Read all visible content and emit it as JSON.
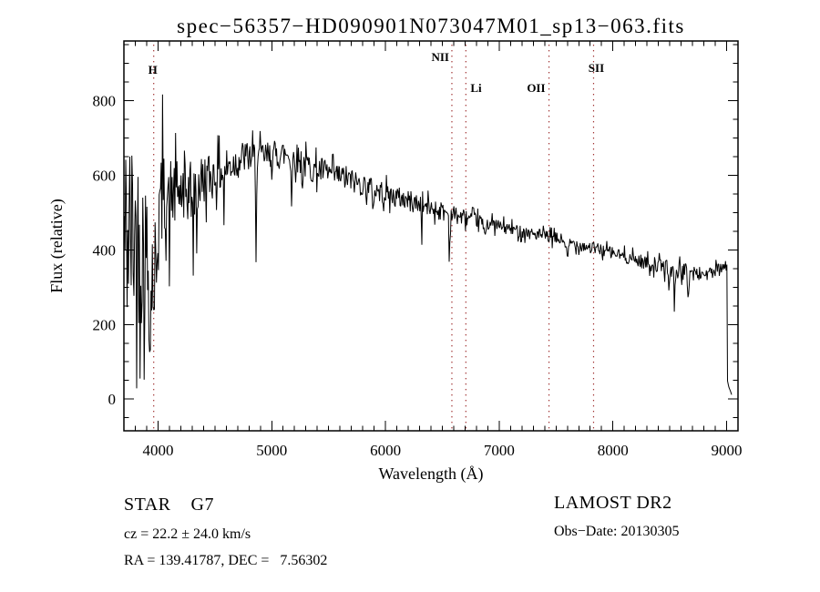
{
  "chart_data": {
    "type": "line",
    "title": "spec−56357−HD090901N073047M01_sp13−063.fits",
    "xlabel": "Wavelength (Å)",
    "ylabel": "Flux (relative)",
    "xlim": [
      3700,
      9100
    ],
    "ylim": [
      -85,
      960
    ],
    "x_ticks": [
      4000,
      5000,
      6000,
      7000,
      8000,
      9000
    ],
    "x_minor_step": 100,
    "y_ticks": [
      0,
      200,
      400,
      600,
      800
    ],
    "y_minor_step": 50,
    "grid": false,
    "legend": "none",
    "line_color": "#000000",
    "marker_line_color": "#a03232",
    "spectral_lines": [
      {
        "label": "H",
        "wavelength": 3962,
        "anchor": "middle",
        "dx": -1,
        "label_y": 81
      },
      {
        "label": "NII",
        "wavelength": 6584,
        "anchor": "end",
        "dx": -3,
        "label_y": 67
      },
      {
        "label": "Li",
        "wavelength": 6707,
        "anchor": "start",
        "dx": 5,
        "label_y": 101
      },
      {
        "label": "OII",
        "wavelength": 7438,
        "anchor": "end",
        "dx": -4,
        "label_y": 101
      },
      {
        "label": "SII",
        "wavelength": 7830,
        "anchor": "middle",
        "dx": 3,
        "label_y": 79
      }
    ],
    "envelope": [
      [
        3704,
        430,
        300
      ],
      [
        3760,
        445,
        280
      ],
      [
        3820,
        430,
        250
      ],
      [
        3880,
        400,
        230
      ],
      [
        3940,
        340,
        210
      ],
      [
        3980,
        400,
        190
      ],
      [
        4010,
        500,
        150
      ],
      [
        4060,
        545,
        115
      ],
      [
        4150,
        555,
        100
      ],
      [
        4250,
        555,
        95
      ],
      [
        4350,
        575,
        85
      ],
      [
        4450,
        595,
        70
      ],
      [
        4550,
        610,
        62
      ],
      [
        4650,
        630,
        55
      ],
      [
        4750,
        648,
        48
      ],
      [
        4850,
        650,
        45
      ],
      [
        4950,
        650,
        42
      ],
      [
        5050,
        655,
        42
      ],
      [
        5150,
        658,
        42
      ],
      [
        5250,
        640,
        42
      ],
      [
        5350,
        618,
        40
      ],
      [
        5450,
        610,
        38
      ],
      [
        5550,
        600,
        36
      ],
      [
        5650,
        592,
        36
      ],
      [
        5750,
        580,
        33
      ],
      [
        5850,
        568,
        33
      ],
      [
        5950,
        556,
        33
      ],
      [
        6050,
        545,
        32
      ],
      [
        6150,
        537,
        30
      ],
      [
        6250,
        527,
        30
      ],
      [
        6350,
        517,
        29
      ],
      [
        6450,
        508,
        28
      ],
      [
        6550,
        500,
        27
      ],
      [
        6650,
        490,
        24
      ],
      [
        6750,
        483,
        21
      ],
      [
        6850,
        476,
        20
      ],
      [
        6950,
        468,
        19
      ],
      [
        7050,
        459,
        19
      ],
      [
        7150,
        452,
        18
      ],
      [
        7250,
        446,
        18
      ],
      [
        7350,
        440,
        18
      ],
      [
        7450,
        433,
        18
      ],
      [
        7550,
        427,
        18
      ],
      [
        7650,
        418,
        18
      ],
      [
        7750,
        410,
        18
      ],
      [
        7850,
        403,
        18
      ],
      [
        7950,
        396,
        18
      ],
      [
        8050,
        387,
        18
      ],
      [
        8150,
        378,
        19
      ],
      [
        8250,
        369,
        20
      ],
      [
        8350,
        361,
        22
      ],
      [
        8450,
        353,
        24
      ],
      [
        8550,
        346,
        25
      ],
      [
        8650,
        340,
        24
      ],
      [
        8750,
        336,
        21
      ],
      [
        8850,
        336,
        20
      ],
      [
        8950,
        348,
        20
      ],
      [
        9000,
        358,
        14
      ],
      [
        9004,
        340,
        12
      ],
      [
        9008,
        45,
        8
      ],
      [
        9044,
        14,
        4
      ]
    ],
    "absorption_features": [
      [
        3933,
        250,
        5
      ],
      [
        3968,
        235,
        5
      ],
      [
        4040,
        -175,
        4
      ],
      [
        4101,
        160,
        6
      ],
      [
        4227,
        110,
        5
      ],
      [
        4310,
        170,
        8
      ],
      [
        4340,
        135,
        6
      ],
      [
        4580,
        140,
        4
      ],
      [
        4861,
        250,
        6
      ],
      [
        5175,
        120,
        7
      ],
      [
        5270,
        60,
        6
      ],
      [
        5893,
        55,
        6
      ],
      [
        6320,
        85,
        4
      ],
      [
        6563,
        115,
        6
      ],
      [
        6870,
        35,
        12
      ],
      [
        7600,
        45,
        14
      ],
      [
        8498,
        55,
        6
      ],
      [
        8542,
        80,
        7
      ],
      [
        8662,
        65,
        7
      ]
    ],
    "noise_seed": 42,
    "sample_step_angstrom": 6
  },
  "footer": {
    "class_label": "STAR    G7",
    "cz_line": "cz = 22.2 ± 24.0 km/s",
    "radec_line": "RA = 139.41787, DEC =   7.56302",
    "survey": "LAMOST DR2",
    "obs_date_line": "Obs−Date: 20130305"
  }
}
